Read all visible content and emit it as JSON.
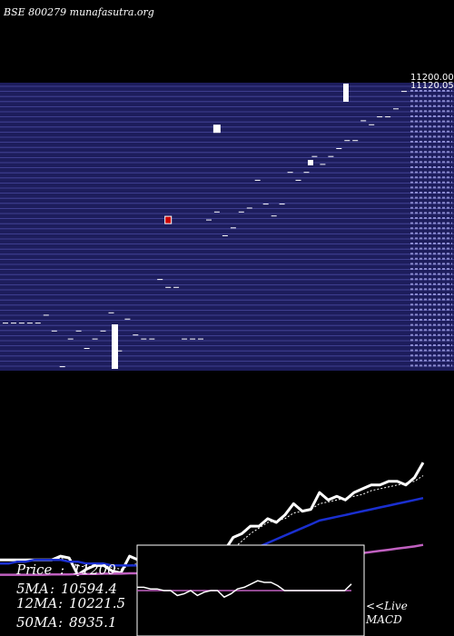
{
  "header": {
    "title": "BSE 800279 munafasutra.org"
  },
  "stats": {
    "price_label": "Price",
    "price_value": "11200",
    "ma5_label": "5MA",
    "ma5_value": "10594.4",
    "ma12_label": "12MA",
    "ma12_value": "10221.5",
    "ma50_label": "50MA",
    "ma50_value": "8935.1"
  },
  "macd": {
    "link_label": "<<Live",
    "label": "MACD"
  },
  "colors": {
    "background": "#000000",
    "price_band": "#1d1d5c",
    "band_line": "#4a4aa0",
    "price_line": "#ffffff",
    "ma_short": "#ffffff",
    "ma_mid": "#1a2fd0",
    "ma_long": "#c060c0",
    "highlight": "#cc0000"
  },
  "chart_data": [
    {
      "type": "line",
      "note_series": "daily candles (ticks + bodies)",
      "y_tick_labels": [
        "11200.00",
        "11120.05"
      ],
      "ylim": [
        7600,
        11230
      ],
      "series": [
        {
          "values": [
            8200,
            8200,
            8200,
            8200,
            8200,
            8300,
            8100,
            7650,
            8000,
            8100,
            7880,
            8000,
            8100,
            8330,
            7850,
            8250,
            8050,
            8000,
            8000,
            8750,
            8650,
            8650,
            8000,
            8000,
            8000,
            9500,
            9600,
            9300,
            9400,
            9600,
            9650,
            10000,
            9700,
            9550,
            9700,
            10100,
            10000,
            10100,
            10300,
            10200,
            10300,
            10400,
            10500,
            10500,
            10750,
            10700,
            10800,
            10800,
            10900,
            11120
          ]
        }
      ],
      "highlight_candles": [
        {
          "index": 20,
          "value": 9500
        },
        {
          "index": 26,
          "value": 10650
        }
      ]
    },
    {
      "type": "line",
      "note_series": "price line with moving averages (5MA, 12MA, 50MA)",
      "series": [
        {
          "values": [
            7600,
            7600,
            7600,
            7600,
            7600,
            7600,
            7600,
            7700,
            7650,
            7200,
            7350,
            7450,
            7450,
            7300,
            7250,
            7700,
            7600,
            7300,
            7200,
            7350,
            7100,
            7000,
            7200,
            7300,
            7500,
            7900,
            7850,
            8200,
            8300,
            8500,
            8500,
            8700,
            8600,
            8800,
            9100,
            8900,
            8950,
            9400,
            9200,
            9300,
            9200,
            9400,
            9500,
            9600,
            9600,
            9700,
            9700,
            9600,
            9800,
            10200
          ]
        },
        {
          "values": [
            7600,
            7600,
            7600,
            7600,
            7600,
            7600,
            7600,
            7650,
            7550,
            7450,
            7400,
            7450,
            7450,
            7400,
            7350,
            7450,
            7500,
            7400,
            7350,
            7320,
            7250,
            7200,
            7150,
            7200,
            7300,
            7500,
            7700,
            7900,
            8100,
            8300,
            8450,
            8600,
            8650,
            8700,
            8850,
            8900,
            8950,
            9100,
            9150,
            9200,
            9250,
            9300,
            9350,
            9450,
            9500,
            9550,
            9600,
            9650,
            9700,
            9850
          ]
        },
        {
          "values": [
            7500,
            7500,
            7550,
            7550,
            7600,
            7600,
            7600,
            7600,
            7550,
            7550,
            7500,
            7500,
            7500,
            7450,
            7450,
            7450,
            7450,
            7400,
            7400,
            7400,
            7350,
            7350,
            7350,
            7350,
            7400,
            7450,
            7550,
            7650,
            7750,
            7850,
            7950,
            8050,
            8150,
            8250,
            8350,
            8450,
            8550,
            8650,
            8700,
            8750,
            8800,
            8850,
            8900,
            8950,
            9000,
            9050,
            9100,
            9150,
            9200,
            9250
          ]
        },
        {
          "values": [
            7200,
            7200,
            7200,
            7200,
            7200,
            7200,
            7210,
            7210,
            7210,
            7220,
            7220,
            7220,
            7230,
            7230,
            7230,
            7240,
            7240,
            7250,
            7250,
            7260,
            7270,
            7280,
            7290,
            7300,
            7310,
            7330,
            7350,
            7370,
            7390,
            7410,
            7430,
            7450,
            7480,
            7510,
            7540,
            7570,
            7600,
            7630,
            7660,
            7690,
            7720,
            7750,
            7780,
            7810,
            7840,
            7870,
            7900,
            7930,
            7960,
            8000
          ]
        }
      ]
    },
    {
      "type": "line",
      "note_series": "MACD panel (MACD line and signal line)",
      "series": [
        {
          "values": [
            0.2,
            0.2,
            0.1,
            0.1,
            0.0,
            0.0,
            -0.3,
            -0.2,
            0.0,
            -0.3,
            -0.1,
            0.0,
            0.0,
            -0.4,
            -0.2,
            0.1,
            0.2,
            0.4,
            0.6,
            0.5,
            0.5,
            0.3,
            0.0,
            0.0,
            0.0,
            0.0,
            0.0,
            0.0,
            0.0,
            0.0,
            0.0,
            0.0,
            0.4
          ]
        },
        {
          "values": [
            0.0,
            0.0,
            0.0,
            0.0,
            0.0,
            0.0,
            0.0,
            0.0,
            0.0,
            0.0,
            0.0,
            0.0,
            0.0,
            0.0,
            0.0,
            0.0,
            0.0,
            0.0,
            0.0,
            0.0,
            0.0,
            0.0,
            0.0,
            0.0,
            0.0,
            0.0,
            0.0,
            0.0,
            0.0,
            0.0,
            0.0,
            0.0,
            0.0
          ]
        }
      ]
    }
  ]
}
